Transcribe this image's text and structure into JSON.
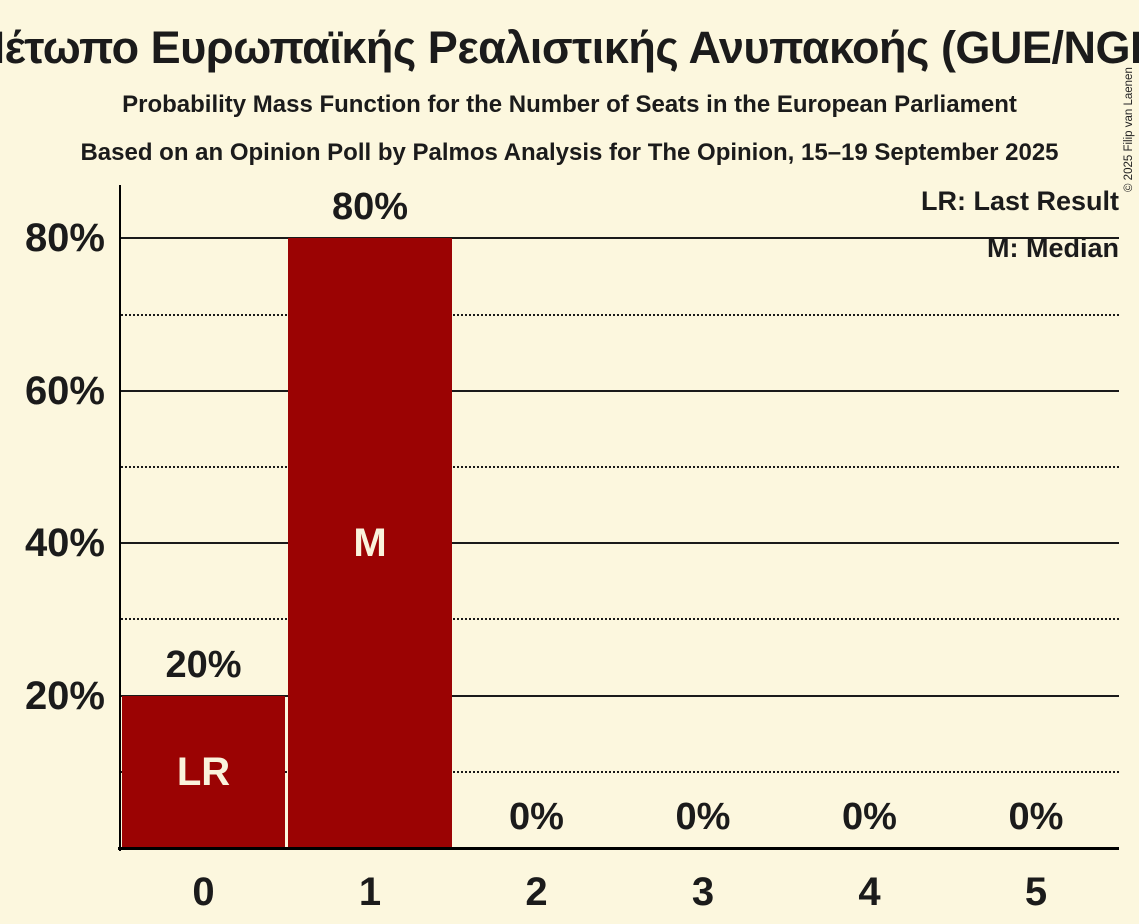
{
  "header": {
    "title": "Μέτωπο Ευρωπαϊκής Ρεαλιστικής Ανυπακοής (GUE/NGL)",
    "subtitle": "Probability Mass Function for the Number of Seats in the European Parliament",
    "subsubtitle": "Based on an Opinion Poll by Palmos Analysis for The Opinion, 15–19 September 2025"
  },
  "legend": {
    "lr": "LR: Last Result",
    "m": "M: Median"
  },
  "copyright": "© 2025 Filip van Laenen",
  "chart_data": {
    "type": "bar",
    "title": "Μέτωπο Ευρωπαϊκής Ρεαλιστικής Ανυπακοής (GUE/NGL)",
    "xlabel": "",
    "ylabel": "",
    "categories": [
      "0",
      "1",
      "2",
      "3",
      "4",
      "5"
    ],
    "values": [
      20,
      80,
      0,
      0,
      0,
      0
    ],
    "value_labels": [
      "20%",
      "80%",
      "0%",
      "0%",
      "0%",
      "0%"
    ],
    "annotations": [
      {
        "category_index": 0,
        "label": "LR"
      },
      {
        "category_index": 1,
        "label": "M"
      }
    ],
    "ylim": [
      0,
      87
    ],
    "yticks": [
      {
        "value": 20,
        "label": "20%"
      },
      {
        "value": 40,
        "label": "40%"
      },
      {
        "value": 60,
        "label": "60%"
      },
      {
        "value": 80,
        "label": "80%"
      }
    ],
    "minor_gridlines": [
      10,
      30,
      50,
      70
    ],
    "grid": true,
    "legend_position": "top-right",
    "colors": {
      "bar": "#9B0303",
      "background": "#FCF7DE",
      "text": "#1B1B1B",
      "bar_text": "#FAF3DC"
    }
  }
}
